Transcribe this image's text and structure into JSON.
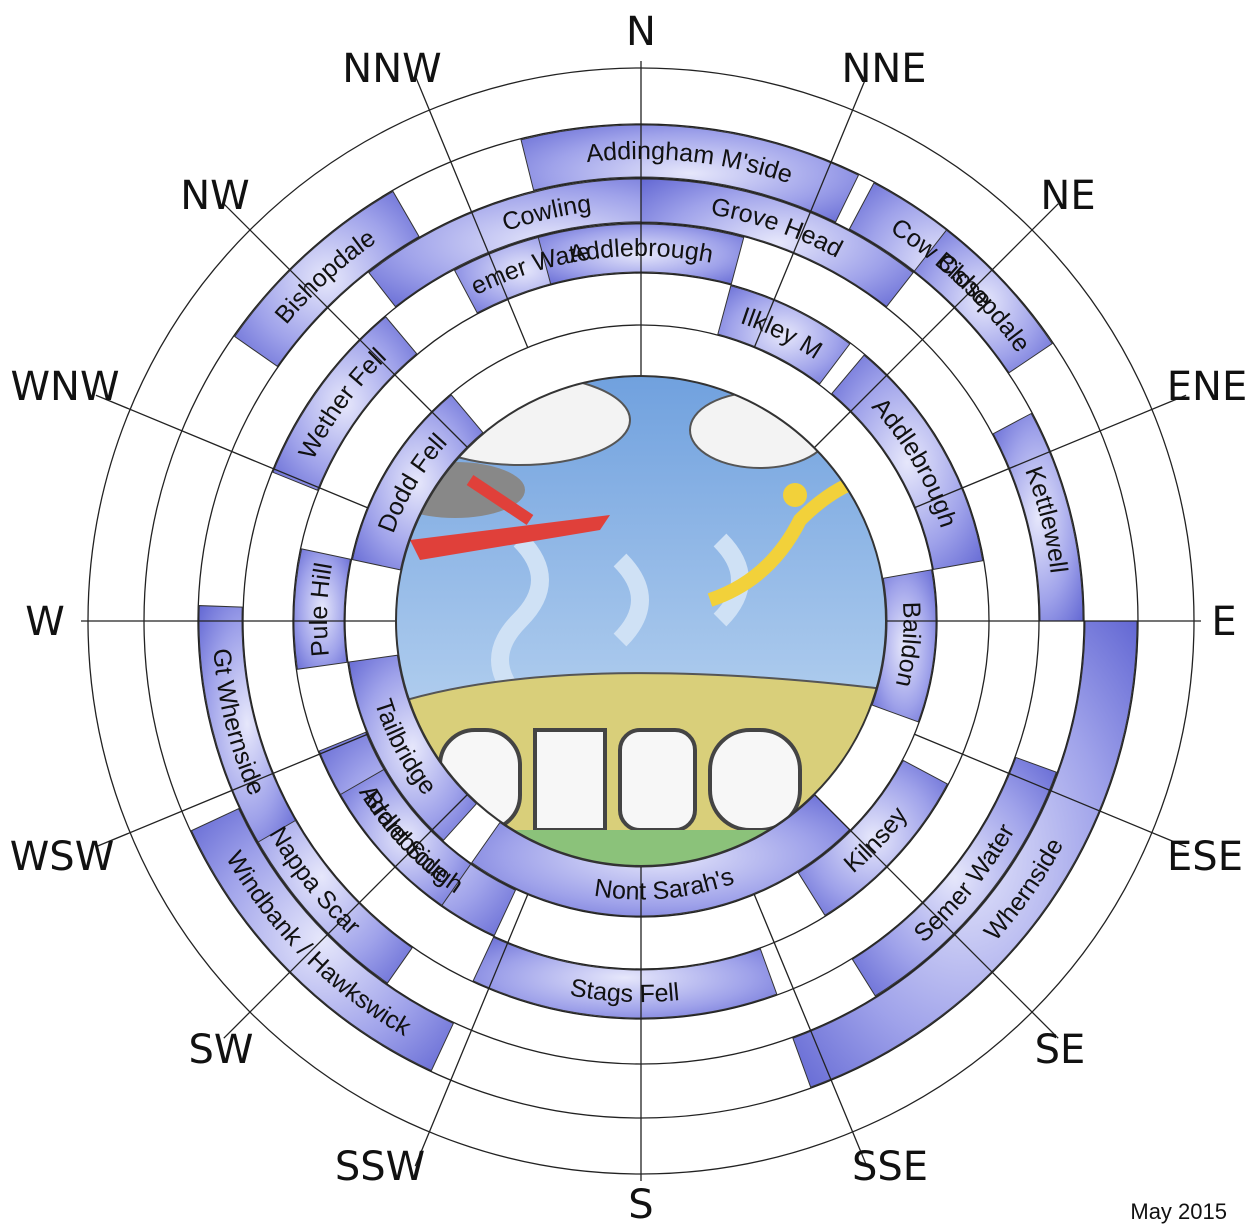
{
  "compass": {
    "directions": [
      "N",
      "NNE",
      "NE",
      "ENE",
      "E",
      "ESE",
      "SE",
      "SSE",
      "S",
      "SSW",
      "SW",
      "WSW",
      "W",
      "WNW",
      "NW",
      "NNW"
    ]
  },
  "colors": {
    "segment_fill": "#6b6fd6",
    "segment_light": "#c9cbf3",
    "sky": "#8fb6e6",
    "ground": "#d9cf7a"
  },
  "segments": [
    {
      "ring": 5,
      "name": "Addingham M'side"
    },
    {
      "ring": 5,
      "name": "Cow Close"
    },
    {
      "ring": 5,
      "name": "Bishopdale"
    },
    {
      "ring": 5,
      "name": "Whernside"
    },
    {
      "ring": 5,
      "name": "Windbank / Hawkswick"
    },
    {
      "ring": 5,
      "name": "Bishopdale"
    },
    {
      "ring": 4,
      "name": "Cowling"
    },
    {
      "ring": 4,
      "name": "Grove Head"
    },
    {
      "ring": 4,
      "name": "Kettlewell"
    },
    {
      "ring": 4,
      "name": "Semer Water"
    },
    {
      "ring": 4,
      "name": "Nappa Scar"
    },
    {
      "ring": 4,
      "name": "Gt Whernside"
    },
    {
      "ring": 3,
      "name": "Semer Water"
    },
    {
      "ring": 3,
      "name": "Addlebrough"
    },
    {
      "ring": 3,
      "name": "Stags Fell"
    },
    {
      "ring": 3,
      "name": "Wether Fell"
    },
    {
      "ring": 2,
      "name": "Addlebrough"
    },
    {
      "ring": 2,
      "name": "Ilkley M"
    },
    {
      "ring": 2,
      "name": "Kilnsey"
    },
    {
      "ring": 2,
      "name": "Addlebrough"
    },
    {
      "ring": 2,
      "name": "Pule Hill"
    },
    {
      "ring": 2,
      "name": "Brant Side"
    },
    {
      "ring": 1,
      "name": "Baildon"
    },
    {
      "ring": 1,
      "name": "Nont Sarah's"
    },
    {
      "ring": 1,
      "name": "Tailbridge"
    },
    {
      "ring": 1,
      "name": "Dodd Fell"
    }
  ],
  "footer": {
    "date": "May 2015"
  }
}
